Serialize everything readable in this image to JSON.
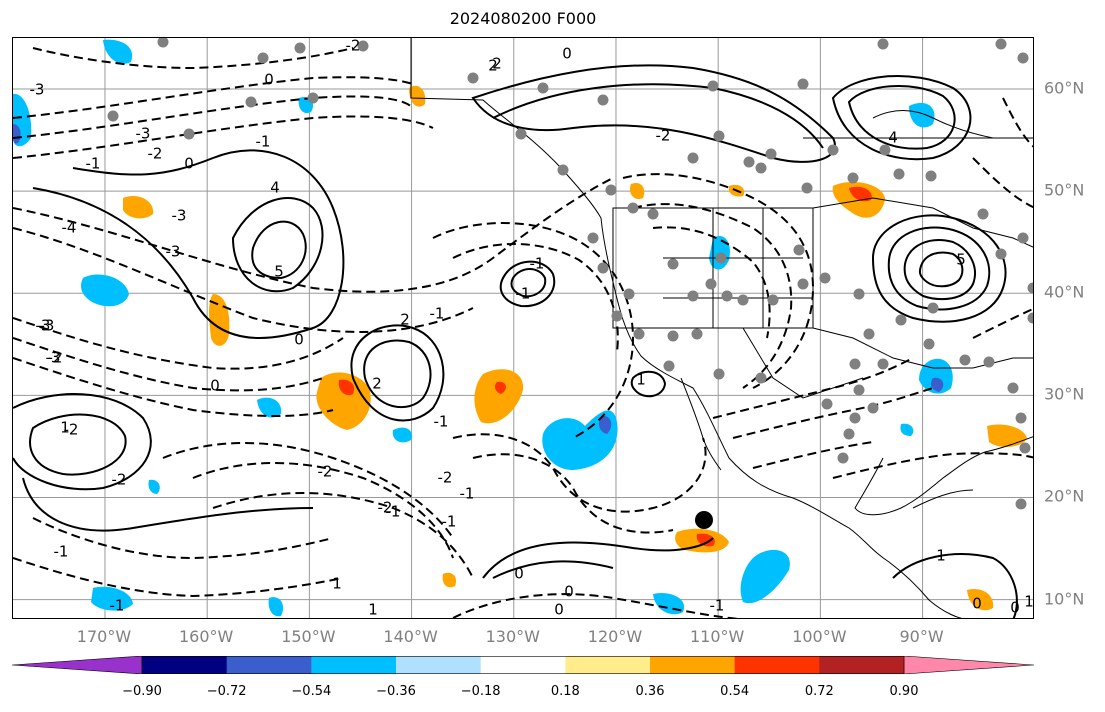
{
  "title": "2024080200 F000",
  "lat_labels": [
    "60°N",
    "50°N",
    "40°N",
    "30°N",
    "20°N",
    "10°N"
  ],
  "lat_values": [
    60,
    50,
    40,
    30,
    20,
    10
  ],
  "lon_labels": [
    "170°W",
    "160°W",
    "150°W",
    "140°W",
    "130°W",
    "120°W",
    "110°W",
    "100°W",
    "90°W"
  ],
  "lon_values": [
    -170,
    -160,
    -150,
    -140,
    -130,
    -120,
    -110,
    -100,
    -90
  ],
  "extent": {
    "lon_min": -179,
    "lon_max": -79,
    "lat_min": 8,
    "lat_max": 65
  },
  "colorbar": {
    "ticks": [
      "−0.90",
      "−0.72",
      "−0.54",
      "−0.36",
      "−0.18",
      "0.18",
      "0.36",
      "0.54",
      "0.72",
      "0.90"
    ],
    "under_color": "#9932cc",
    "over_color": "#ff88aa",
    "colors": [
      "#000080",
      "#3a5fcd",
      "#00bfff",
      "#b0e0ff",
      "#ffffff",
      "#ffec8b",
      "#ffa500",
      "#ff3300",
      "#b22222"
    ]
  },
  "contour_labels": [
    "0",
    "-2",
    "-3",
    "2",
    "0",
    "-1",
    "-3",
    "-2",
    "-1",
    "0",
    "-4",
    "-3",
    "4",
    "-3",
    "5",
    "-3",
    "-2",
    "2",
    "-1",
    "2",
    "0",
    "0",
    "-2",
    "-1",
    "1",
    "-2",
    "-1",
    "-2",
    "-2",
    "-1",
    "0",
    "0",
    "0",
    "1",
    "1",
    "1",
    "4",
    "5",
    "-1",
    "-1",
    "-2",
    "-1",
    "-1",
    "2",
    "0",
    "-3",
    "-3",
    "-2",
    "-1",
    "-1",
    "1",
    "1",
    "0"
  ]
}
